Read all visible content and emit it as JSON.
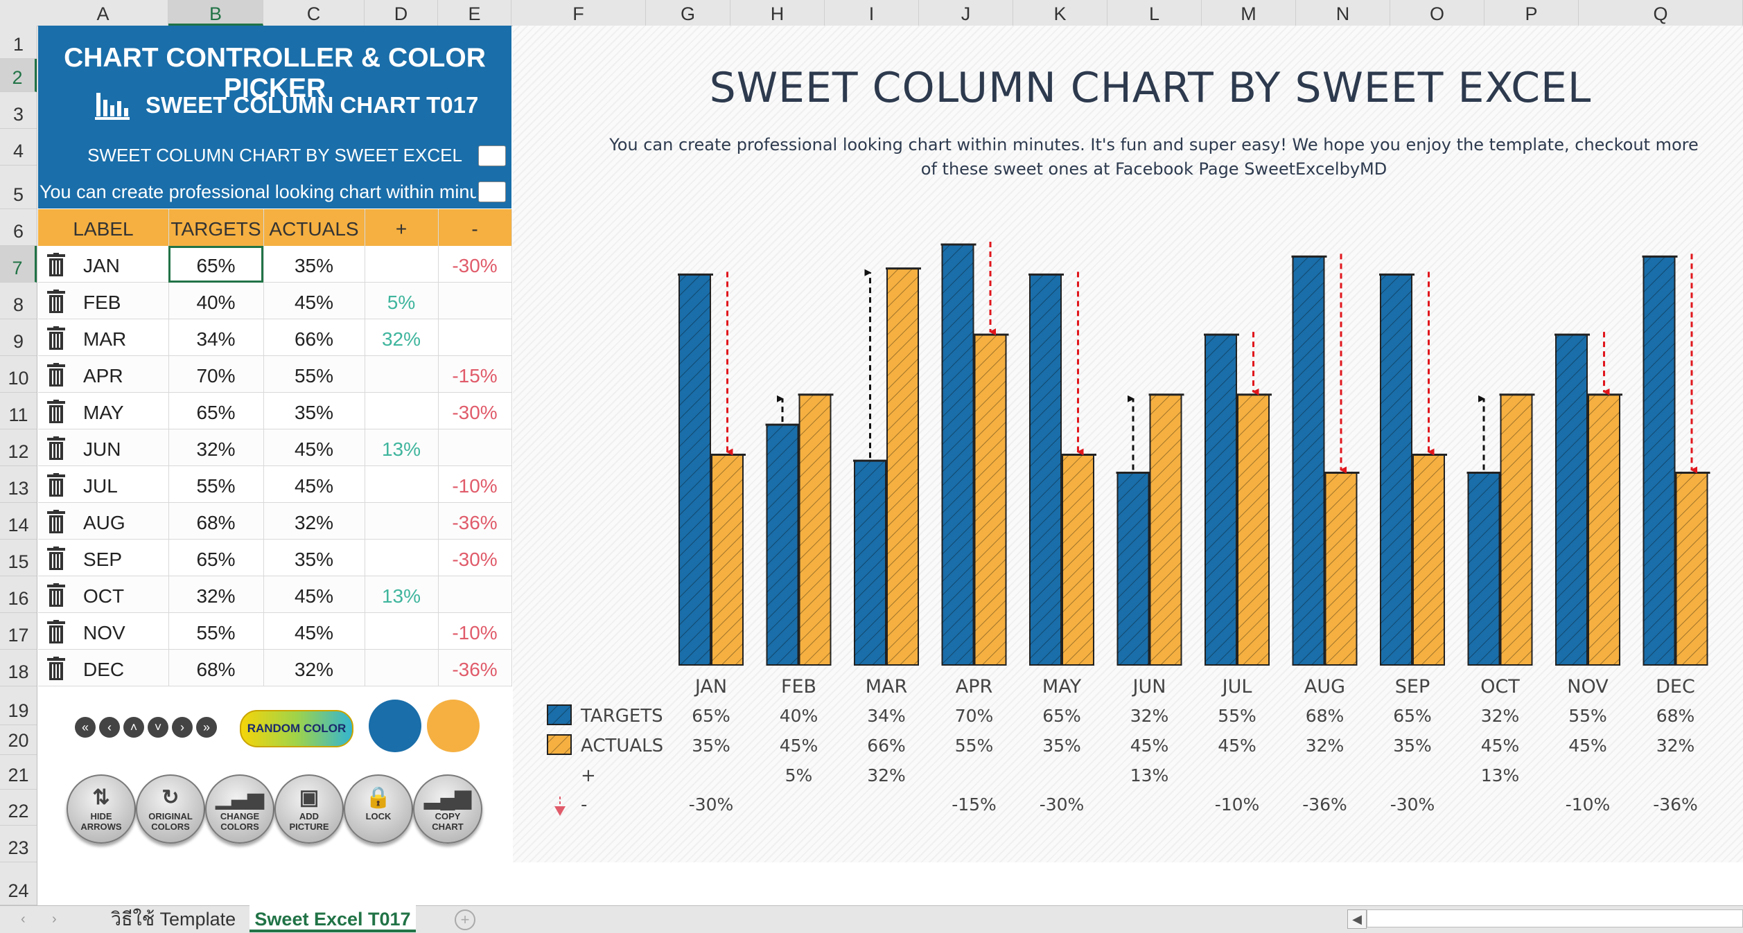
{
  "columns": [
    "A",
    "B",
    "C",
    "D",
    "E",
    "F",
    "G",
    "H",
    "I",
    "J",
    "K",
    "L",
    "M",
    "N",
    "O",
    "P",
    "Q"
  ],
  "rows": [
    "1",
    "2",
    "3",
    "4",
    "5",
    "6",
    "7",
    "8",
    "9",
    "10",
    "11",
    "12",
    "13",
    "14",
    "15",
    "16",
    "17",
    "18",
    "19",
    "20",
    "21",
    "22",
    "23",
    "24"
  ],
  "panel": {
    "title": "CHART CONTROLLER & COLOR PICKER",
    "subtitle": "SWEET COLUMN CHART T017",
    "chart_title_cell": "SWEET COLUMN CHART BY SWEET EXCEL",
    "chart_sub_cell": "You can create professional looking chart within minutes. It's fun and super easy! We hope you enjoy the template, checkout more of these sweet ones at Facebook Page SweetExcelbyMD"
  },
  "table": {
    "headers": [
      "LABEL",
      "TARGETS",
      "ACTUALS",
      "+",
      "-"
    ],
    "rows": [
      {
        "label": "JAN",
        "target": "65%",
        "actual": "35%",
        "plus": "",
        "minus": "-30%"
      },
      {
        "label": "FEB",
        "target": "40%",
        "actual": "45%",
        "plus": "5%",
        "minus": ""
      },
      {
        "label": "MAR",
        "target": "34%",
        "actual": "66%",
        "plus": "32%",
        "minus": ""
      },
      {
        "label": "APR",
        "target": "70%",
        "actual": "55%",
        "plus": "",
        "minus": "-15%"
      },
      {
        "label": "MAY",
        "target": "65%",
        "actual": "35%",
        "plus": "",
        "minus": "-30%"
      },
      {
        "label": "JUN",
        "target": "32%",
        "actual": "45%",
        "plus": "13%",
        "minus": ""
      },
      {
        "label": "JUL",
        "target": "55%",
        "actual": "45%",
        "plus": "",
        "minus": "-10%"
      },
      {
        "label": "AUG",
        "target": "68%",
        "actual": "32%",
        "plus": "",
        "minus": "-36%"
      },
      {
        "label": "SEP",
        "target": "65%",
        "actual": "35%",
        "plus": "",
        "minus": "-30%"
      },
      {
        "label": "OCT",
        "target": "32%",
        "actual": "45%",
        "plus": "13%",
        "minus": ""
      },
      {
        "label": "NOV",
        "target": "55%",
        "actual": "45%",
        "plus": "",
        "minus": "-10%"
      },
      {
        "label": "DEC",
        "target": "68%",
        "actual": "32%",
        "plus": "",
        "minus": "-36%"
      }
    ]
  },
  "controls": {
    "nav": [
      "«",
      "‹",
      "˄",
      "˅",
      "›",
      "»"
    ],
    "random_color": "RANDOM COLOR",
    "target_color": "#1a6ea9",
    "actual_color": "#f5b041",
    "buttons": [
      {
        "l1": "HIDE",
        "l2": "ARROWS",
        "icon": "hide-arrows-icon"
      },
      {
        "l1": "ORIGINAL",
        "l2": "COLORS",
        "icon": "refresh-icon"
      },
      {
        "l1": "CHANGE",
        "l2": "COLORS",
        "icon": "bar-chart-icon"
      },
      {
        "l1": "ADD",
        "l2": "PICTURE",
        "icon": "picture-icon"
      },
      {
        "l1": "LOCK",
        "l2": "",
        "icon": "lock-icon"
      },
      {
        "l1": "COPY",
        "l2": "CHART",
        "icon": "copy-chart-icon"
      }
    ]
  },
  "sheets": {
    "tab1": "วิธีใช้ Template",
    "tab2": "Sweet Excel T017"
  },
  "chart_data": {
    "type": "bar",
    "title": "SWEET COLUMN CHART BY SWEET EXCEL",
    "subtitle": "You can create professional looking chart within minutes. It's fun and super easy! We hope you enjoy the template, checkout more of these sweet ones at Facebook Page SweetExcelbyMD",
    "categories": [
      "JAN",
      "FEB",
      "MAR",
      "APR",
      "MAY",
      "JUN",
      "JUL",
      "AUG",
      "SEP",
      "OCT",
      "NOV",
      "DEC"
    ],
    "series": [
      {
        "name": "TARGETS",
        "values": [
          65,
          40,
          34,
          70,
          65,
          32,
          55,
          68,
          65,
          32,
          55,
          68
        ],
        "color": "#1a6ea9"
      },
      {
        "name": "ACTUALS",
        "values": [
          35,
          45,
          66,
          55,
          35,
          45,
          45,
          32,
          35,
          45,
          45,
          32
        ],
        "color": "#f5b041"
      }
    ],
    "table_rows": {
      "targets": [
        "65%",
        "40%",
        "34%",
        "70%",
        "65%",
        "32%",
        "55%",
        "68%",
        "65%",
        "32%",
        "55%",
        "68%"
      ],
      "actuals": [
        "35%",
        "45%",
        "66%",
        "55%",
        "35%",
        "45%",
        "45%",
        "32%",
        "35%",
        "45%",
        "45%",
        "32%"
      ],
      "plus": [
        "",
        "5%",
        "32%",
        "",
        "",
        "13%",
        "",
        "",
        "",
        "13%",
        "",
        ""
      ],
      "minus": [
        "-30%",
        "",
        "",
        "-15%",
        "-30%",
        "",
        "-10%",
        "-36%",
        "-30%",
        "",
        "-10%",
        "-36%"
      ]
    },
    "plus_label": "+",
    "minus_label": "-",
    "ylim": [
      0,
      75
    ],
    "grid": false,
    "legend": "data-table-left"
  }
}
